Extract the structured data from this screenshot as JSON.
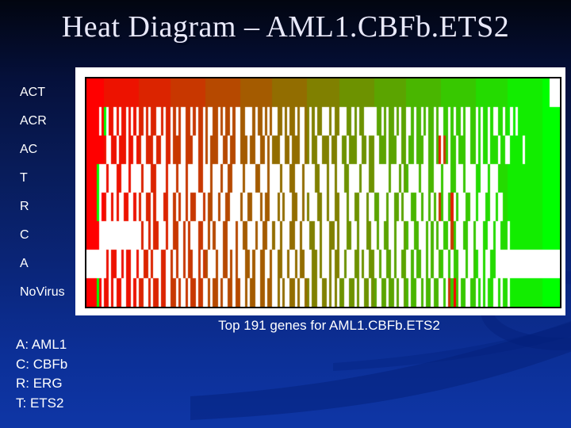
{
  "slide": {
    "title": "Heat Diagram – AML1.CBFb.ETS2",
    "caption": "Top 191 genes for AML1.CBFb.ETS2",
    "legend": [
      "A: AML1",
      "C: CBFb",
      "R: ERG",
      "T: ETS2"
    ]
  },
  "colors": {
    "background_top": "#020510",
    "background_bottom": "#0e36a6",
    "swoosh": "#04207a",
    "title_text": "#e9e9fa",
    "label_text": "#ffffff",
    "panel_background": "#ffffff",
    "heatmap_border": "#000000",
    "heat_low": "#ff0000",
    "heat_high": "#00ff00",
    "heat_missing": "#ffffff"
  },
  "chart_data": {
    "type": "heatmap",
    "title": "Top 191 genes for AML1.CBFb.ETS2",
    "columns": 191,
    "column_meaning": "genes, ordered left(red/low) to right(green/high)",
    "legend_position": "bottom-left",
    "grid": false,
    "value_scale": {
      "low_color": "#ff0000",
      "high_color": "#00ff00",
      "missing": "#ffffff",
      "encoding": "each char is one gene column: '.'=missing(white), 'x'=value follows red-to-green gradient t=col/190, digit 0-9=explicit value t=d/9"
    },
    "rows": [
      {
        "label": "ACT",
        "cells": "xxxxxxxxxxxxxxxxxxxxxxxxxxxxxxxxxxxxxxxxxxxxxxxxxxxxxxxxxxxxxxxxxxxxxxxxxxxxxxxxxxxxxxxxxxxxxxxxxxxxxxxxxxxxxxxxxxxxxxxxxxxxxxxxxxxxxxxxxxxxxxxxxxxxxxxxxxxxxxxxxxxxxxxxxxxxxxxxxxxxxxxxxxx"
      },
      {
        "label": "ACR",
        "cells": "xxxxx.x9.xx.x.xx.x.x.xx.x.xx..x.xx.x.x..xx.x.xx.x..xx.x.xx.x..xx...x.xx.x.x..xx.x.xx.x..xx.x.xx...x.xx...xx.x.xx.....xx.x.xx.x.xx..x.xx.x.xx.x..xx.x.xx.x..xx.x.xx.x..xx.xx.x.xxxxxxxxxxxxxxxxx"
      },
      {
        "label": "AC",
        "cells": "xxxxxxxx..xx.xxx.xx.xx..xxx.xx..xx.xxx..xxx..xx.x.xxx..xx.xx..xxx.xx..xx.x.xxx..xx.xxx..xx.xx..xxx.xx..xx.xxx..xx.xx..xxx.xxx..xx.xx.xxx..xx.x1.2x.xx.xxx..xx.x.xx.xxx.xx..xxxxx.xxxxxxxxxxxxxx"
      },
      {
        "label": "T",
        "cells": "xxxx9...x...xx...x....x...xx....x...x...x....xx...x...x..xx....x....xx...x....x...xx...x....xx...x..x...xx....x...xx......x...x.xx....x...xx...x...xx...x....xx...x...xxxxxxxxxxxxxxxxxxxxxxxxx"
      },
      {
        "label": "R",
        "cells": "xxxx9.xx..x.x..xx..x.x..xx.x...xx..x.x..x.xx...x.xx..x..xx....x..xx...x.xx...x.x...xx..x.x...xx..x..xx...x..xx...x..xx...x..xx.x...xx..x..x.x.2x..x1.x...xx..x...xx..x..xxxxxxxxxxxxxxxxxxxxxxx"
      },
      {
        "label": "C",
        "cells": "xxxxx.................x..x.xx...x..xx..x.x...xx..x.x...xx...x..xx...x..xx..x..x...xx..x...xx..x...xx.x...xx..x...xx..x..xx..x...xx..xx...x.x.x..xx.2x...xx..x...xx..x..xxx.xxxxxxxxxxxxxxxxxxxx"
      },
      {
        "label": "A",
        "cells": "........x.xx..x.xx..x..xx.x...xx..x.x..x.xx..x.xx...x..xx.x.x...xx.x..xx..x..xx..x..x.xx...xx.x...x.xx..x...xx.x..xx..x..xx.x..xx..x.xx..x.x..xx..x.xx...x..xx..x..xx.........................."
      },
      {
        "label": "NoVirus",
        "cells": "xxxx9x.xx.x.xx..xx.x.xx..x.xx.xx..xx.x..x.xx.xx..x.xx.x..xx.xx..x.xx..xx.xx..x.x..xx.x..xx.xx..xx.x.x.xx..xx.x..xx.xx..xx.xx.x..xx.xx..x.xx.xx..x.2x0x.xx..xx.x.x.xx..x.xx.xxxxxxxxxxxxxxxxxxxx"
      }
    ]
  }
}
